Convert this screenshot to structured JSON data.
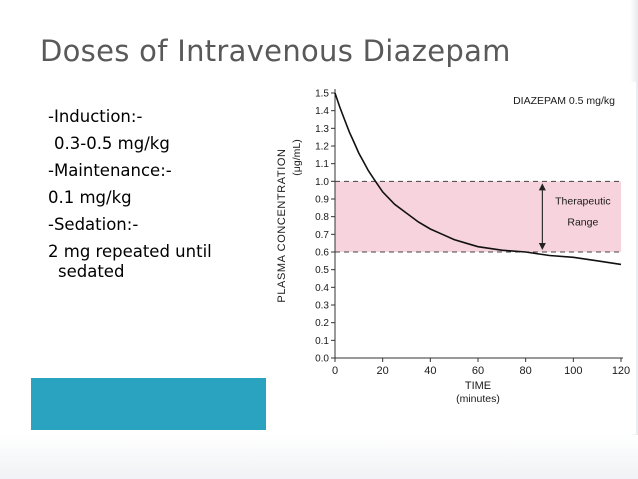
{
  "slide": {
    "title": "Doses of Intravenous Diazepam",
    "dose_lines": [
      "-Induction:-",
      "0.3-0.5 mg/kg",
      "-Maintenance:-",
      "0.1 mg/kg",
      "-Sedation:-",
      "2 mg repeated until",
      "sedated"
    ],
    "accent_color": "#2aa3c0"
  },
  "chart_data": {
    "type": "line",
    "title": "DIAZEPAM 0.5 mg/kg",
    "xlabel": "TIME",
    "xlabel_units": "(minutes)",
    "ylabel": "PLASMA CONCENTRATION",
    "ylabel_units": "(μg/mL)",
    "xlim": [
      0,
      120
    ],
    "ylim": [
      0,
      1.5
    ],
    "x_ticks": [
      0,
      20,
      40,
      60,
      80,
      100,
      120
    ],
    "y_ticks": [
      "0.0",
      "0.1",
      "0.2",
      "0.3",
      "0.4",
      "0.5",
      "0.6",
      "0.7",
      "0.8",
      "0.9",
      "1.0",
      "1.1",
      "1.2",
      "1.3",
      "1.4",
      "1.5"
    ],
    "series": [
      {
        "x": [
          0,
          2,
          4,
          6,
          8,
          10,
          12,
          14,
          16,
          18,
          20,
          25,
          30,
          35,
          40,
          45,
          50,
          55,
          60,
          70,
          80,
          90,
          100,
          110,
          120
        ],
        "y": [
          1.5,
          1.42,
          1.35,
          1.28,
          1.22,
          1.16,
          1.11,
          1.06,
          1.02,
          0.98,
          0.94,
          0.87,
          0.82,
          0.77,
          0.73,
          0.7,
          0.67,
          0.65,
          0.63,
          0.61,
          0.6,
          0.58,
          0.57,
          0.55,
          0.53
        ]
      }
    ],
    "therapeutic_range": {
      "low": 0.6,
      "high": 1.0,
      "label_lines": [
        "Therapeutic",
        "Range"
      ]
    },
    "range_fill_color": "#f6d3dd",
    "line_color": "#111111"
  }
}
